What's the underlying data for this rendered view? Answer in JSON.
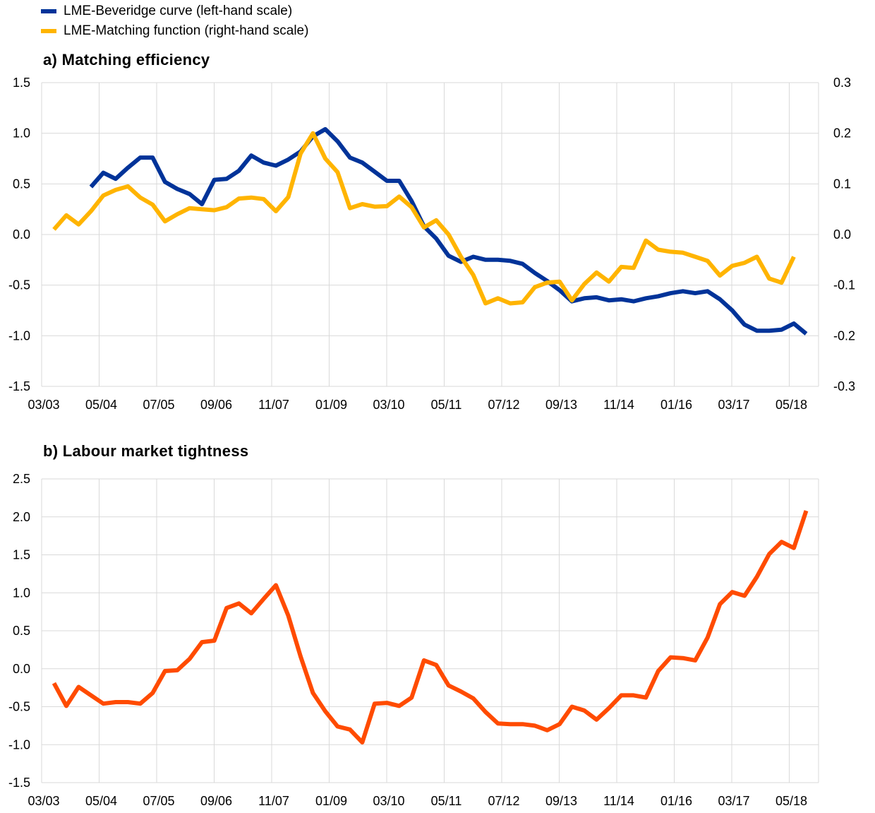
{
  "legend": {
    "items": [
      {
        "label": "LME-Beveridge curve (left-hand scale)",
        "color": "#003399"
      },
      {
        "label": "LME-Matching function (right-hand scale)",
        "color": "#FFB400"
      }
    ]
  },
  "chart_data": [
    {
      "type": "line",
      "title": "a) Matching efficiency",
      "x_tick_labels": [
        "03/03",
        "05/04",
        "07/05",
        "09/06",
        "11/07",
        "01/09",
        "03/10",
        "05/11",
        "07/12",
        "09/13",
        "11/14",
        "01/16",
        "03/17",
        "05/18"
      ],
      "y_left": {
        "ylim": [
          -1.5,
          1.5
        ],
        "ticks": [
          "1.5",
          "1.0",
          "0.5",
          "0.0",
          "-0.5",
          "-1.0",
          "-1.5"
        ]
      },
      "y_right": {
        "ylim": [
          -0.3,
          0.3
        ],
        "ticks": [
          "0.3",
          "0.2",
          "0.1",
          "0.0",
          "-0.1",
          "-0.2",
          "-0.3"
        ]
      },
      "grid": true,
      "series": [
        {
          "name": "LME-Beveridge curve (left-hand scale)",
          "axis": "left",
          "color": "#003399",
          "x_index_start": 4,
          "values": [
            0.47,
            0.61,
            0.55,
            0.66,
            0.76,
            0.76,
            0.52,
            0.45,
            0.4,
            0.3,
            0.54,
            0.55,
            0.63,
            0.78,
            0.71,
            0.68,
            0.74,
            0.82,
            0.97,
            1.04,
            0.92,
            0.76,
            0.71,
            0.62,
            0.53,
            0.53,
            0.33,
            0.08,
            -0.04,
            -0.21,
            -0.27,
            -0.22,
            -0.25,
            -0.25,
            -0.26,
            -0.29,
            -0.38,
            -0.46,
            -0.55,
            -0.66,
            -0.63,
            -0.62,
            -0.65,
            -0.64,
            -0.66,
            -0.63,
            -0.61,
            -0.58,
            -0.56,
            -0.58,
            -0.56,
            -0.64,
            -0.75,
            -0.89,
            -0.95,
            -0.95,
            -0.94,
            -0.88,
            -0.98
          ]
        },
        {
          "name": "LME-Matching function (right-hand scale)",
          "axis": "right",
          "color": "#FFB400",
          "x_index_start": 1,
          "values": [
            0.01,
            0.038,
            0.02,
            0.046,
            0.077,
            0.088,
            0.095,
            0.073,
            0.059,
            0.026,
            0.04,
            0.052,
            0.05,
            0.048,
            0.054,
            0.071,
            0.073,
            0.07,
            0.046,
            0.074,
            0.16,
            0.2,
            0.15,
            0.123,
            0.052,
            0.06,
            0.055,
            0.056,
            0.075,
            0.054,
            0.014,
            0.028,
            0.0,
            -0.044,
            -0.08,
            -0.136,
            -0.126,
            -0.136,
            -0.134,
            -0.104,
            -0.095,
            -0.093,
            -0.13,
            -0.098,
            -0.075,
            -0.093,
            -0.064,
            -0.066,
            -0.012,
            -0.03,
            -0.034,
            -0.036,
            -0.044,
            -0.052,
            -0.081,
            -0.062,
            -0.056,
            -0.044,
            -0.087,
            -0.095,
            -0.044
          ]
        }
      ]
    },
    {
      "type": "line",
      "title": "b) Labour market tightness",
      "x_tick_labels": [
        "03/03",
        "05/04",
        "07/05",
        "09/06",
        "11/07",
        "01/09",
        "03/10",
        "05/11",
        "07/12",
        "09/13",
        "11/14",
        "01/16",
        "03/17",
        "05/18"
      ],
      "y_left": {
        "ylim": [
          -1.5,
          2.5
        ],
        "ticks": [
          "2.5",
          "2.0",
          "1.5",
          "1.0",
          "0.5",
          "0.0",
          "-0.5",
          "-1.0",
          "-1.5"
        ]
      },
      "grid": true,
      "series": [
        {
          "name": "Labour market tightness",
          "axis": "left",
          "color": "#FF4B00",
          "x_index_start": 1,
          "values": [
            -0.19,
            -0.49,
            -0.24,
            -0.35,
            -0.46,
            -0.44,
            -0.44,
            -0.46,
            -0.32,
            -0.03,
            -0.02,
            0.13,
            0.35,
            0.37,
            0.8,
            0.86,
            0.73,
            0.92,
            1.1,
            0.7,
            0.16,
            -0.32,
            -0.56,
            -0.76,
            -0.8,
            -0.97,
            -0.46,
            -0.45,
            -0.49,
            -0.38,
            0.11,
            0.05,
            -0.22,
            -0.3,
            -0.39,
            -0.57,
            -0.72,
            -0.73,
            -0.73,
            -0.75,
            -0.81,
            -0.73,
            -0.5,
            -0.55,
            -0.67,
            -0.52,
            -0.35,
            -0.35,
            -0.38,
            -0.03,
            0.15,
            0.14,
            0.11,
            0.41,
            0.85,
            1.01,
            0.96,
            1.21,
            1.51,
            1.67,
            1.59,
            2.08
          ]
        }
      ]
    }
  ]
}
